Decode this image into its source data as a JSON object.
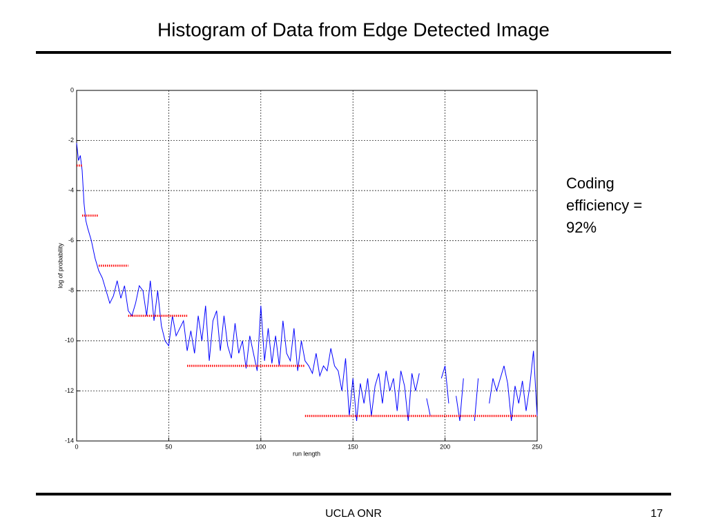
{
  "title": "Histogram of Data from Edge Detected Image",
  "note": "Coding efficiency = 92%",
  "footer": {
    "center": "UCLA ONR",
    "page": "17"
  },
  "chart_data": {
    "type": "line",
    "xlabel": "run length",
    "ylabel": "log of probability",
    "xlim": [
      0,
      250
    ],
    "ylim": [
      -14,
      0
    ],
    "xticks": [
      0,
      50,
      100,
      150,
      200,
      250
    ],
    "yticks": [
      0,
      -2,
      -4,
      -6,
      -8,
      -10,
      -12,
      -14
    ],
    "grid": true,
    "x": [
      0,
      1,
      2,
      3,
      4,
      5,
      6,
      8,
      10,
      12,
      14,
      16,
      18,
      20,
      22,
      24,
      26,
      28,
      30,
      32,
      34,
      36,
      38,
      40,
      42,
      44,
      46,
      48,
      50,
      52,
      54,
      56,
      58,
      60,
      62,
      64,
      66,
      68,
      70,
      72,
      74,
      76,
      78,
      80,
      82,
      84,
      86,
      88,
      90,
      92,
      94,
      96,
      98,
      100,
      102,
      104,
      106,
      108,
      110,
      112,
      114,
      116,
      118,
      120,
      122,
      124,
      126,
      128,
      130,
      132,
      134,
      136,
      138,
      140,
      142,
      144,
      146,
      148,
      150,
      152,
      154,
      156,
      158,
      160,
      162,
      164,
      166,
      168,
      170,
      172,
      174,
      176,
      178,
      180,
      182,
      184,
      186,
      188,
      190,
      192,
      194,
      198,
      200,
      202,
      204,
      206,
      208,
      210,
      212,
      216,
      218,
      220,
      224,
      226,
      228,
      230,
      232,
      234,
      236,
      238,
      240,
      242,
      244,
      246,
      248,
      250
    ],
    "series": [
      {
        "color": "#0000ff",
        "values": [
          -2.1,
          -2.8,
          -2.6,
          -3.2,
          -4.5,
          -5.2,
          -5.5,
          -6.0,
          -6.7,
          -7.2,
          -7.5,
          -8.0,
          -8.5,
          -8.2,
          -7.6,
          -8.3,
          -7.8,
          -8.8,
          -9.0,
          -8.5,
          -7.8,
          -8.0,
          -9.0,
          -7.6,
          -9.2,
          -8.0,
          -9.4,
          -10.0,
          -10.2,
          -9.0,
          -9.8,
          -9.5,
          -9.2,
          -10.4,
          -9.6,
          -10.5,
          -9.0,
          -10.0,
          -8.6,
          -10.8,
          -9.2,
          -8.8,
          -10.4,
          -9.0,
          -10.2,
          -10.7,
          -9.3,
          -10.5,
          -10.0,
          -11.1,
          -9.8,
          -10.5,
          -11.2,
          -8.6,
          -10.8,
          -9.5,
          -10.9,
          -9.8,
          -11.0,
          -9.2,
          -10.5,
          -10.8,
          -9.5,
          -11.2,
          -10.0,
          -10.8,
          -11.0,
          -11.3,
          -10.5,
          -11.4,
          -11.0,
          -11.2,
          -10.3,
          -11.0,
          -11.2,
          -12.0,
          -10.7,
          -13.0,
          -11.5,
          -13.2,
          -11.7,
          -12.5,
          -11.5,
          -13.0,
          -11.8,
          -11.3,
          -12.5,
          -11.2,
          -12.0,
          -11.5,
          -12.8,
          -11.2,
          -11.8,
          -13.2,
          -11.3,
          -12.0,
          -11.3,
          null,
          -12.3,
          -13.0,
          null,
          -11.5,
          -11.0,
          -12.5,
          null,
          -12.2,
          -13.2,
          -11.5,
          null,
          -13.2,
          -11.5,
          null,
          -12.5,
          -11.5,
          -12.0,
          -11.5,
          -11.0,
          -11.7,
          -13.2,
          -11.8,
          -12.5,
          -11.6,
          -12.8,
          -11.8,
          -10.4,
          -13.0
        ]
      }
    ],
    "steps": {
      "color": "#ff0000",
      "items": [
        {
          "x": [
            0,
            3
          ],
          "value": -3
        },
        {
          "x": [
            3,
            12
          ],
          "value": -5
        },
        {
          "x": [
            12,
            28
          ],
          "value": -7
        },
        {
          "x": [
            28,
            60
          ],
          "value": -9
        },
        {
          "x": [
            60,
            124
          ],
          "value": -11
        },
        {
          "x": [
            124,
            250
          ],
          "value": -13
        }
      ]
    }
  }
}
